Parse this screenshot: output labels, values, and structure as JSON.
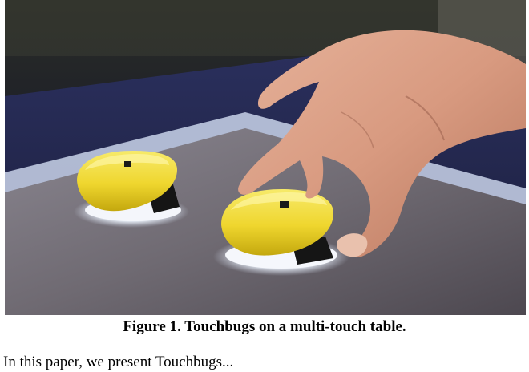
{
  "figure": {
    "caption": "Figure 1.  Touchbugs on a multi-touch table."
  },
  "body": {
    "partial_line": "In this paper, we present Touchbugs..."
  }
}
